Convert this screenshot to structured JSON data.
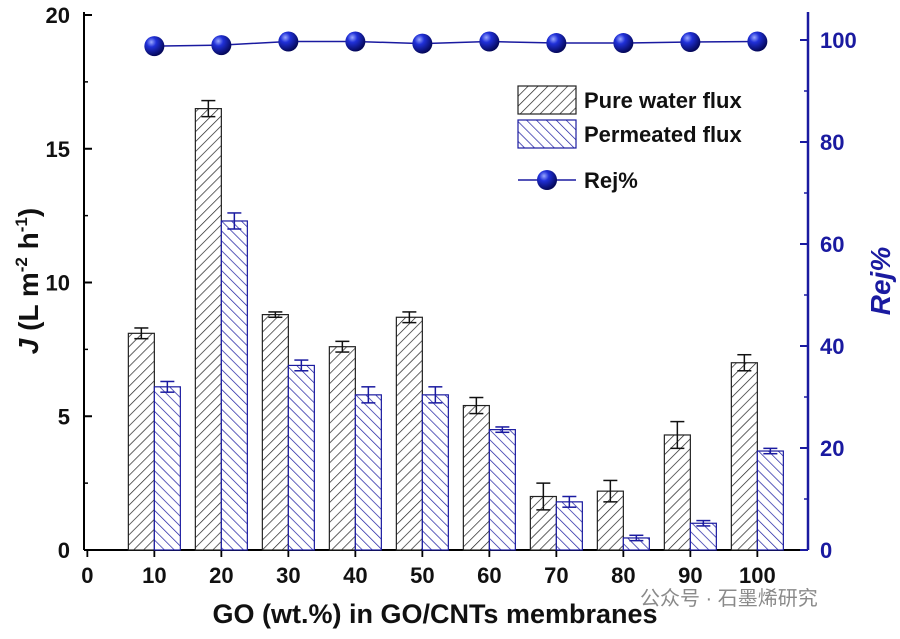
{
  "chart_data": {
    "type": "bar",
    "title": "",
    "xlabel": "GO (wt.%) in GO/CNTs membranes",
    "ylabel_left": {
      "italic": "J",
      "rest": " (L m",
      "sup1": "-2",
      "mid": " h",
      "sup2": "-1",
      "end": ")"
    },
    "ylabel_right": "Rej%",
    "x_ticks": [
      "0",
      "10",
      "20",
      "30",
      "40",
      "50",
      "60",
      "70",
      "80",
      "90",
      "100"
    ],
    "categories": [
      "10",
      "20",
      "30",
      "40",
      "50",
      "60",
      "70",
      "80",
      "90",
      "100"
    ],
    "ylim_left": [
      0,
      20
    ],
    "yticks_left": [
      "0",
      "5",
      "10",
      "15",
      "20"
    ],
    "ylim_right": [
      0,
      100
    ],
    "yticks_right": [
      "0",
      "20",
      "40",
      "60",
      "80",
      "100"
    ],
    "series": [
      {
        "name": "Pure water flux",
        "axis": "left",
        "kind": "bar",
        "values": [
          8.1,
          16.5,
          8.8,
          7.6,
          8.7,
          5.4,
          2.0,
          2.2,
          4.3,
          7.0
        ],
        "errors": [
          0.2,
          0.3,
          0.1,
          0.2,
          0.2,
          0.3,
          0.5,
          0.4,
          0.5,
          0.3
        ],
        "color": "#222222"
      },
      {
        "name": "Permeated flux",
        "axis": "left",
        "kind": "bar",
        "values": [
          6.1,
          12.3,
          6.9,
          5.8,
          5.8,
          4.5,
          1.8,
          0.45,
          1.0,
          3.7
        ],
        "errors": [
          0.2,
          0.3,
          0.2,
          0.3,
          0.3,
          0.1,
          0.2,
          0.1,
          0.1,
          0.1
        ],
        "color": "#1a1aa0"
      },
      {
        "name": "Rej%",
        "axis": "right",
        "kind": "line",
        "values": [
          98.8,
          99.0,
          99.7,
          99.7,
          99.3,
          99.7,
          99.4,
          99.4,
          99.6,
          99.7
        ],
        "color": "#1a1aa0"
      }
    ],
    "legend_position": "top-right"
  },
  "watermark": "公众号 · 石墨烯研究"
}
